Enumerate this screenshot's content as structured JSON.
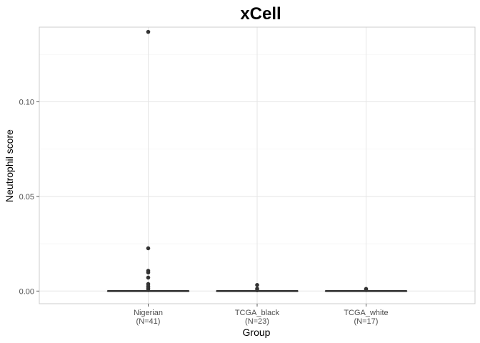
{
  "chart_data": {
    "type": "box",
    "title": "xCell",
    "xlabel": "Group",
    "ylabel": "Neutrophil score",
    "ylim": [
      -0.0067,
      0.1395
    ],
    "y_ticks": [
      0.0,
      0.05,
      0.1
    ],
    "y_tick_labels": [
      "0.00",
      "0.05",
      "0.10"
    ],
    "grid": true,
    "categories": [
      "Nigerian",
      "TCGA_black",
      "TCGA_white"
    ],
    "category_sublabels": [
      "(N=41)",
      "(N=23)",
      "(N=17)"
    ],
    "boxes": [
      {
        "q1": 0.0,
        "median": 0.0,
        "q3": 0.0,
        "whisker_low": 0.0,
        "whisker_high": 0.0,
        "outliers": [
          0.137,
          0.0226,
          0.0107,
          0.0098,
          0.0071,
          0.0037,
          0.0025,
          0.0015,
          0.0005
        ]
      },
      {
        "q1": 0.0,
        "median": 0.0,
        "q3": 0.0,
        "whisker_low": 0.0,
        "whisker_high": 0.0,
        "outliers": [
          0.0032,
          0.0012,
          0.0004
        ]
      },
      {
        "q1": 0.0,
        "median": 0.0,
        "q3": 0.0,
        "whisker_low": 0.0,
        "whisker_high": 0.0,
        "outliers": [
          0.0011,
          0.0005
        ]
      }
    ],
    "colors": {
      "panel_border": "#cccccc",
      "grid_major": "#e5e5e5",
      "grid_minor": "#f2f2f2",
      "box": "#333333",
      "point": "#333333",
      "tick_text": "#4d4d4d"
    }
  }
}
